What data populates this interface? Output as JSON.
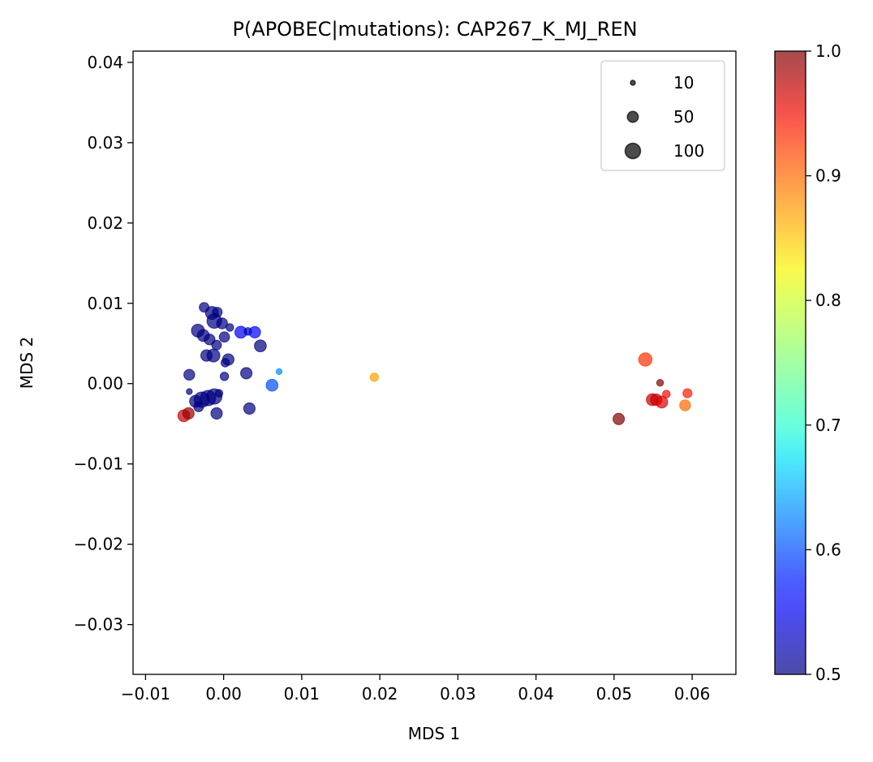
{
  "chart_data": {
    "type": "scatter",
    "title": "P(APOBEC|mutations): CAP267_K_MJ_REN",
    "xlabel": "MDS 1",
    "ylabel": "MDS 2",
    "xlim": [
      -0.0116,
      0.0656
    ],
    "ylim": [
      -0.0362,
      0.0414
    ],
    "x_ticks": [
      -0.01,
      0.0,
      0.01,
      0.02,
      0.03,
      0.04,
      0.05,
      0.06
    ],
    "x_tick_labels": [
      "−0.01",
      "0.00",
      "0.01",
      "0.02",
      "0.03",
      "0.04",
      "0.05",
      "0.06"
    ],
    "y_ticks": [
      -0.03,
      -0.02,
      -0.01,
      0.0,
      0.01,
      0.02,
      0.03,
      0.04
    ],
    "y_tick_labels": [
      "−0.03",
      "−0.02",
      "−0.01",
      "0.00",
      "0.01",
      "0.02",
      "0.03",
      "0.04"
    ],
    "grid": false,
    "colormap": "jet",
    "marker_alpha": 0.7,
    "colorbar": {
      "min": 0.5,
      "max": 1.0,
      "ticks": [
        0.5,
        0.6,
        0.7,
        0.8,
        0.9,
        1.0
      ],
      "tick_labels": [
        "0.5",
        "0.6",
        "0.7",
        "0.8",
        "0.9",
        "1.0"
      ]
    },
    "size_legend": {
      "placement": "upper right",
      "entries": [
        {
          "label": "10",
          "size": 10
        },
        {
          "label": "50",
          "size": 50
        },
        {
          "label": "100",
          "size": 100
        }
      ]
    },
    "points": [
      {
        "x": -0.0025,
        "y": 0.0095,
        "value": 0.5,
        "size": 40
      },
      {
        "x": -0.0015,
        "y": 0.0088,
        "value": 0.5,
        "size": 70
      },
      {
        "x": -0.0008,
        "y": 0.0089,
        "value": 0.5,
        "size": 40
      },
      {
        "x": -0.0012,
        "y": 0.0078,
        "value": 0.5,
        "size": 90
      },
      {
        "x": -0.0002,
        "y": 0.0075,
        "value": 0.5,
        "size": 50
      },
      {
        "x": 0.0008,
        "y": 0.007,
        "value": 0.5,
        "size": 25
      },
      {
        "x": -0.0033,
        "y": 0.0066,
        "value": 0.5,
        "size": 70
      },
      {
        "x": -0.0026,
        "y": 0.006,
        "value": 0.5,
        "size": 60
      },
      {
        "x": -0.0018,
        "y": 0.0055,
        "value": 0.5,
        "size": 50
      },
      {
        "x": -0.0009,
        "y": 0.0048,
        "value": 0.5,
        "size": 40
      },
      {
        "x": 0.0001,
        "y": 0.0058,
        "value": 0.5,
        "size": 45
      },
      {
        "x": -0.0022,
        "y": 0.0035,
        "value": 0.5,
        "size": 55
      },
      {
        "x": -0.0013,
        "y": 0.0035,
        "value": 0.5,
        "size": 70
      },
      {
        "x": 0.0006,
        "y": 0.003,
        "value": 0.5,
        "size": 55
      },
      {
        "x": 0.0002,
        "y": 0.0026,
        "value": 0.5,
        "size": 30
      },
      {
        "x": 0.0022,
        "y": 0.0064,
        "value": 0.55,
        "size": 60
      },
      {
        "x": 0.0031,
        "y": 0.0065,
        "value": 0.52,
        "size": 25
      },
      {
        "x": 0.004,
        "y": 0.0064,
        "value": 0.56,
        "size": 55
      },
      {
        "x": 0.0047,
        "y": 0.0047,
        "value": 0.5,
        "size": 60
      },
      {
        "x": 0.0029,
        "y": 0.0013,
        "value": 0.5,
        "size": 55
      },
      {
        "x": 0.0001,
        "y": 0.0009,
        "value": 0.5,
        "size": 30
      },
      {
        "x": -0.0044,
        "y": 0.0011,
        "value": 0.5,
        "size": 50
      },
      {
        "x": 0.0062,
        "y": -0.0002,
        "value": 0.6,
        "size": 60
      },
      {
        "x": 0.0071,
        "y": 0.0015,
        "value": 0.63,
        "size": 15
      },
      {
        "x": 0.0193,
        "y": 0.0008,
        "value": 0.87,
        "size": 30
      },
      {
        "x": -0.0044,
        "y": -0.001,
        "value": 0.5,
        "size": 15
      },
      {
        "x": -0.0036,
        "y": -0.0022,
        "value": 0.5,
        "size": 60
      },
      {
        "x": -0.0028,
        "y": -0.002,
        "value": 0.5,
        "size": 100
      },
      {
        "x": -0.002,
        "y": -0.0018,
        "value": 0.5,
        "size": 100
      },
      {
        "x": -0.0012,
        "y": -0.0016,
        "value": 0.5,
        "size": 100
      },
      {
        "x": -0.0032,
        "y": -0.0029,
        "value": 0.5,
        "size": 40
      },
      {
        "x": -0.0006,
        "y": -0.0012,
        "value": 0.5,
        "size": 25
      },
      {
        "x": -0.0009,
        "y": -0.0037,
        "value": 0.5,
        "size": 55
      },
      {
        "x": 0.0033,
        "y": -0.0031,
        "value": 0.5,
        "size": 55
      },
      {
        "x": -0.0051,
        "y": -0.004,
        "value": 0.97,
        "size": 60
      },
      {
        "x": -0.0045,
        "y": -0.0037,
        "value": 0.99,
        "size": 55
      },
      {
        "x": 0.054,
        "y": 0.003,
        "value": 0.93,
        "size": 75
      },
      {
        "x": 0.0559,
        "y": 0.0001,
        "value": 1.0,
        "size": 20
      },
      {
        "x": 0.0567,
        "y": -0.0013,
        "value": 0.95,
        "size": 25
      },
      {
        "x": 0.0594,
        "y": -0.0012,
        "value": 0.94,
        "size": 35
      },
      {
        "x": 0.0549,
        "y": -0.002,
        "value": 0.97,
        "size": 60
      },
      {
        "x": 0.0554,
        "y": -0.002,
        "value": 0.97,
        "size": 55
      },
      {
        "x": 0.0561,
        "y": -0.0023,
        "value": 0.96,
        "size": 60
      },
      {
        "x": 0.0591,
        "y": -0.0027,
        "value": 0.9,
        "size": 50
      },
      {
        "x": 0.0506,
        "y": -0.0044,
        "value": 1.0,
        "size": 55
      }
    ]
  }
}
